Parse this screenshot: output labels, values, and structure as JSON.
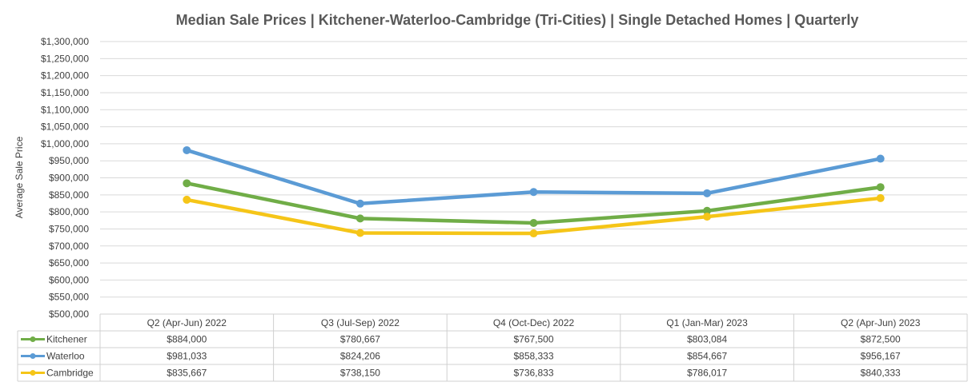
{
  "chart_data": {
    "type": "line",
    "title": "Median Sale Prices | Kitchener-Waterloo-Cambridge (Tri-Cities) | Single Detached Homes | Quarterly",
    "xlabel": "",
    "ylabel": "Average Sale Price",
    "ylim": [
      500000,
      1300000
    ],
    "ytick_step": 50000,
    "yticks": [
      "$500,000",
      "$550,000",
      "$600,000",
      "$650,000",
      "$700,000",
      "$750,000",
      "$800,000",
      "$850,000",
      "$900,000",
      "$950,000",
      "$1,000,000",
      "$1,050,000",
      "$1,100,000",
      "$1,150,000",
      "$1,200,000",
      "$1,250,000",
      "$1,300,000"
    ],
    "categories": [
      "Q2 (Apr-Jun) 2022",
      "Q3 (Jul-Sep) 2022",
      "Q4 (Oct-Dec) 2022",
      "Q1 (Jan-Mar) 2023",
      "Q2 (Apr-Jun) 2023"
    ],
    "grid": true,
    "legend": "data-table",
    "series": [
      {
        "name": "Kitchener",
        "color": "#70ad47",
        "values": [
          884000,
          780667,
          767500,
          803084,
          872500
        ],
        "labels": [
          "$884,000",
          "$780,667",
          "$767,500",
          "$803,084",
          "$872,500"
        ]
      },
      {
        "name": "Waterloo",
        "color": "#5b9bd5",
        "values": [
          981033,
          824206,
          858333,
          854667,
          956167
        ],
        "labels": [
          "$981,033",
          "$824,206",
          "$858,333",
          "$854,667",
          "$956,167"
        ]
      },
      {
        "name": "Cambridge",
        "color": "#f5c518",
        "values": [
          835667,
          738150,
          736833,
          786017,
          840333
        ],
        "labels": [
          "$835,667",
          "$738,150",
          "$736,833",
          "$786,017",
          "$840,333"
        ]
      }
    ]
  }
}
